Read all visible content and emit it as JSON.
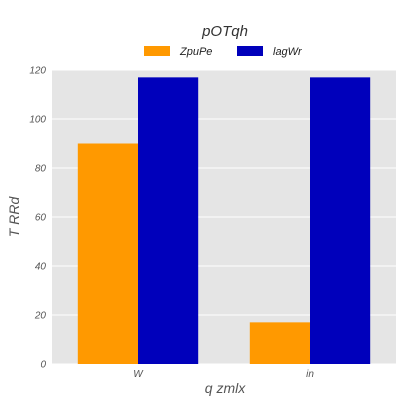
{
  "chart_data": {
    "type": "bar",
    "title": "pOTqh",
    "xlabel": "q zmlx",
    "ylabel": "T RRd",
    "categories": [
      "W",
      "in"
    ],
    "series": [
      {
        "name": "ZpuPe",
        "values": [
          90,
          17
        ],
        "color": "#ff9900"
      },
      {
        "name": "lagWr",
        "values": [
          117,
          117
        ],
        "color": "#0000bb"
      }
    ],
    "ylim": [
      0,
      120
    ],
    "yticks": [
      0,
      20,
      40,
      60,
      80,
      100,
      120
    ],
    "grid": true,
    "legend_position": "top-center",
    "background_color": "#e5e5e5"
  }
}
